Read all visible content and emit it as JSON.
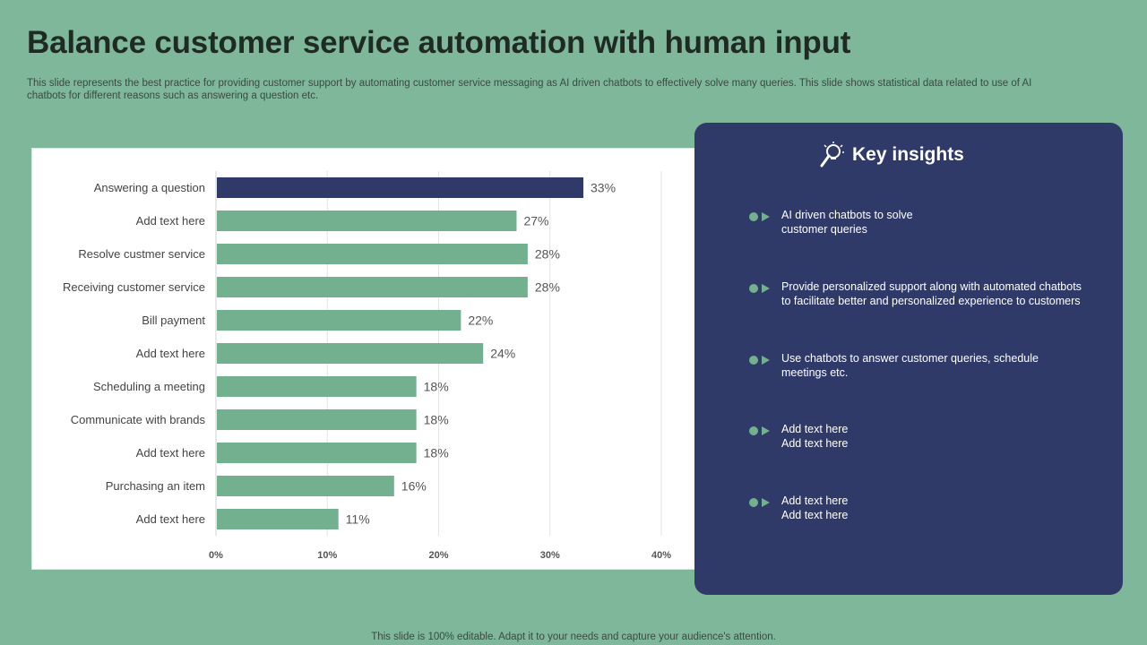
{
  "slide": {
    "title": "Balance customer service automation with human input",
    "subtitle": "This slide represents the best practice for providing customer support by automating customer service messaging as AI driven chatbots to effectively  solve many queries. This slide shows statistical data related to use of AI  chatbots for different reasons such as answering a question etc.",
    "footer": "This slide is 100% editable. Adapt it to your needs and capture your audience's attention."
  },
  "insights": {
    "title": "Key insights",
    "icon": "lightbulb-magnifier-icon",
    "items": [
      "AI driven  chatbots to solve\ncustomer queries",
      "Provide  personalized support along with automated chatbots\n to facilitate better and personalized  experience to customers",
      "Use chatbots to answer customer queries,  schedule\nmeetings etc.",
      "Add text here\nAdd text here",
      "Add text here\nAdd text here"
    ]
  },
  "colors": {
    "background": "#7fb79b",
    "bar": "#72b08f",
    "highlight_bar": "#303a69",
    "panel": "#303a69",
    "marker": "#72b08f"
  },
  "chart_data": {
    "type": "bar",
    "orientation": "horizontal",
    "categories": [
      "Answering a question",
      "Add text here",
      "Resolve custmer service",
      "Receiving customer service",
      "Bill payment",
      "Add text here",
      "Scheduling a meeting",
      "Communicate with brands",
      "Add text here",
      "Purchasing an item",
      "Add text here"
    ],
    "values": [
      33,
      27,
      28,
      28,
      22,
      24,
      18,
      18,
      18,
      16,
      11
    ],
    "value_labels": [
      "33%",
      "27%",
      "28%",
      "28%",
      "22%",
      "24%",
      "18%",
      "18%",
      "18%",
      "16%",
      "11%"
    ],
    "highlight_index": 0,
    "xlim": [
      0,
      40
    ],
    "xticks": [
      "0%",
      "10%",
      "20%",
      "30%",
      "40%"
    ],
    "grid": true,
    "legend": "none"
  }
}
